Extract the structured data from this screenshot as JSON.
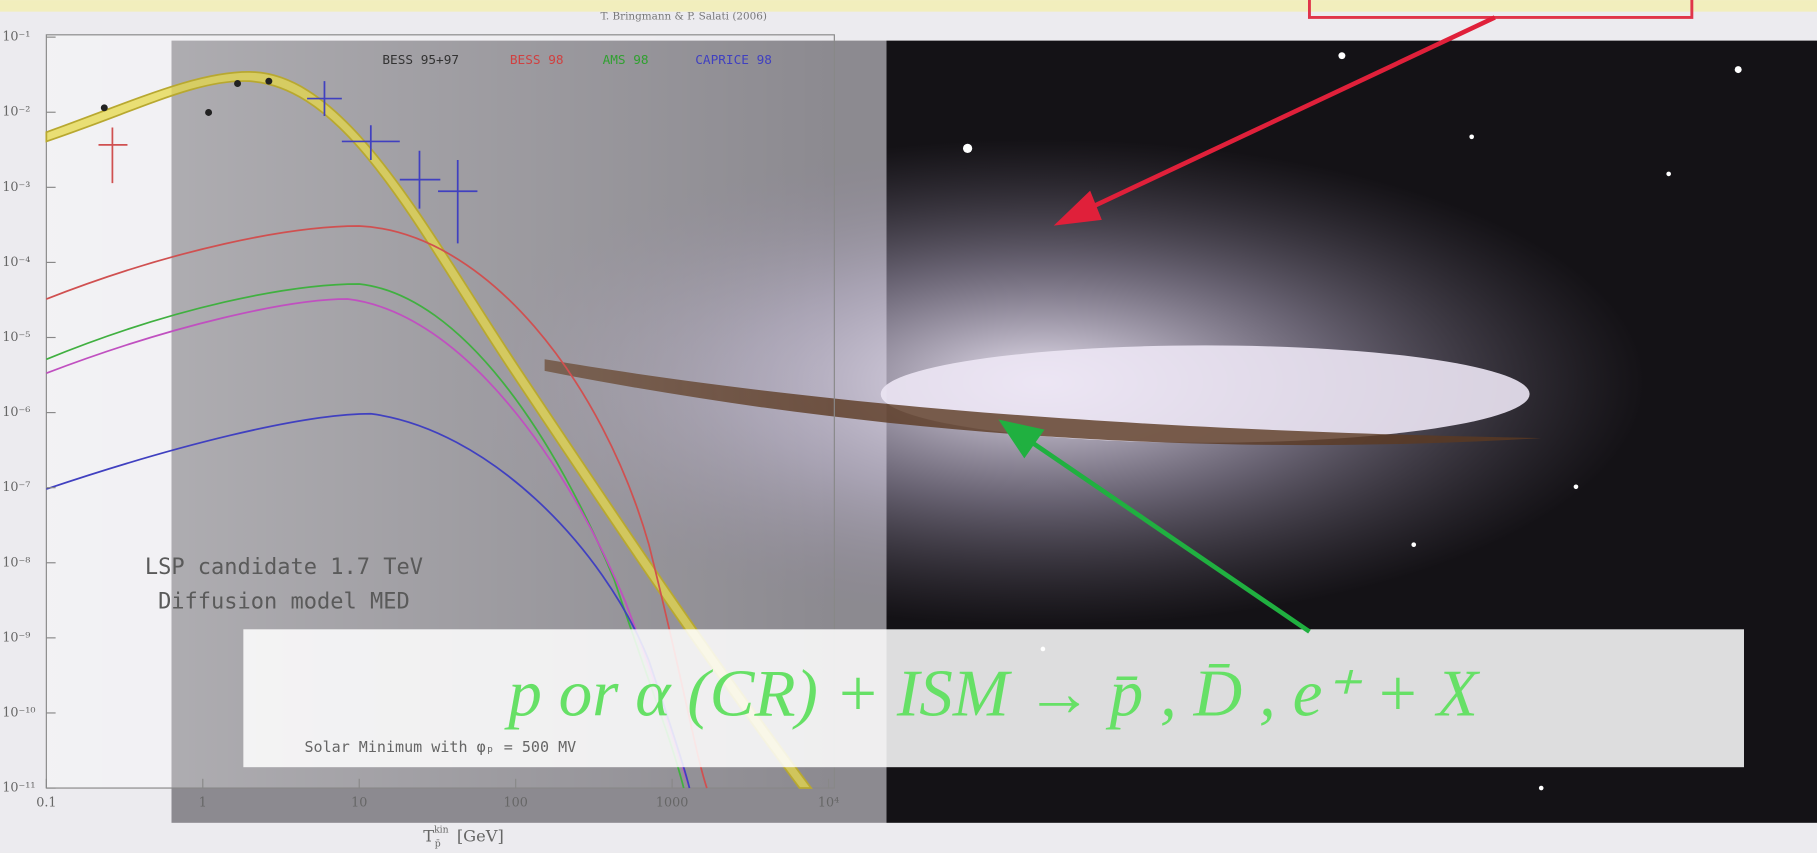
{
  "citation": "T. Bringmann & P. Salati (2006)",
  "legend": [
    {
      "label": "BESS 95+97",
      "color": "#333333"
    },
    {
      "label": "BESS 98",
      "color": "#d04040"
    },
    {
      "label": "AMS 98",
      "color": "#30a030"
    },
    {
      "label": "CAPRICE 98",
      "color": "#4040c0"
    }
  ],
  "x_ticks": [
    "0.1",
    "1",
    "10",
    "100",
    "1000",
    "10⁴"
  ],
  "y_ticks": [
    "10⁻¹",
    "10⁻²",
    "10⁻³",
    "10⁻⁴",
    "10⁻⁵",
    "10⁻⁶",
    "10⁻⁷",
    "10⁻⁸",
    "10⁻⁹",
    "10⁻¹⁰",
    "10⁻¹¹"
  ],
  "x_axis_title": {
    "symbol": "T",
    "superscript": "kin",
    "subscript": "p̄",
    "unit": "[GeV]"
  },
  "annotations": [
    "LSP candidate 1.7 TeV",
    "Diffusion model MED"
  ],
  "solar_note": "Solar Minimum with φₚ = 500 MV",
  "equation": "p or α (CR)  +  ISM  →  p̄ , D̄ , e⁺  +  X"
}
